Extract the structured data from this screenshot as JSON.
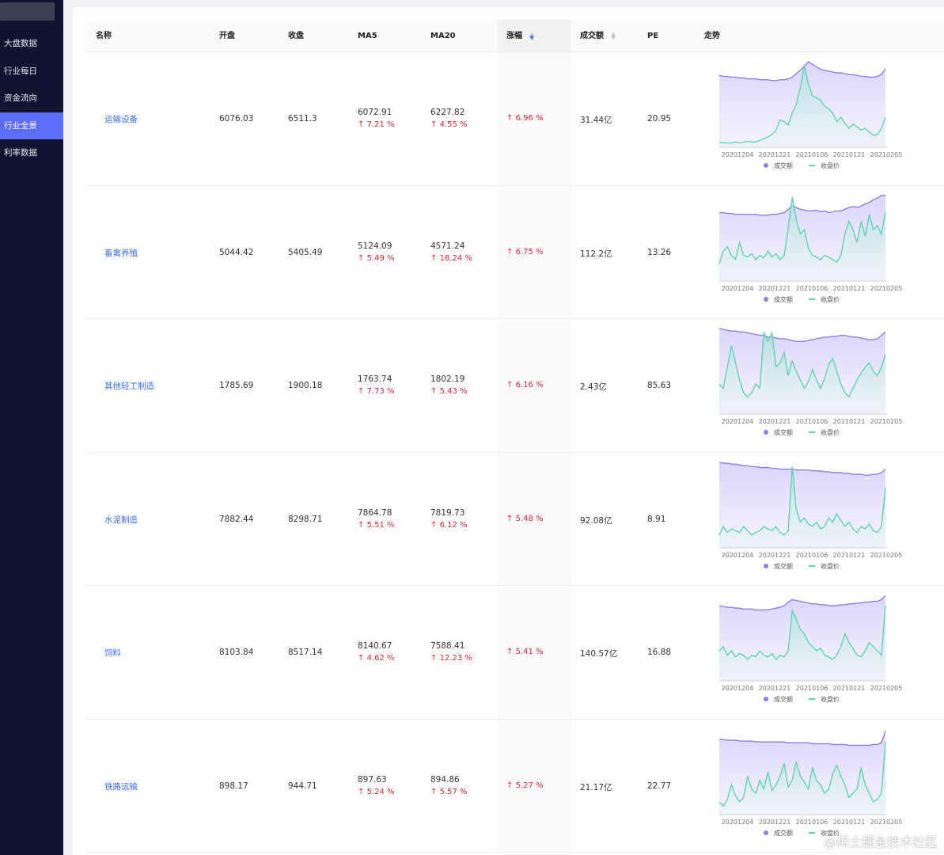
{
  "sidebar": {
    "items": [
      {
        "label": "大盘数据",
        "active": false
      },
      {
        "label": "行业每日",
        "active": false
      },
      {
        "label": "资金流向",
        "active": false
      },
      {
        "label": "行业全景",
        "active": true
      },
      {
        "label": "利率数据",
        "active": false
      }
    ]
  },
  "table": {
    "columns": {
      "name": "名称",
      "open": "开盘",
      "close": "收盘",
      "ma5": "MA5",
      "ma20": "MA20",
      "change": "涨幅",
      "volume": "成交额",
      "pe": "PE",
      "trend": "走势"
    },
    "up_arrow": "↑",
    "rows": [
      {
        "name": "运输设备",
        "open": "6076.03",
        "close": "6511.3",
        "ma5": "6072.91",
        "ma5_pct": "7.21 %",
        "ma20": "6227.82",
        "ma20_pct": "4.55 %",
        "change": "6.96 %",
        "volume": "31.44亿",
        "pe": "20.95"
      },
      {
        "name": "畜禽养殖",
        "open": "5044.42",
        "close": "5405.49",
        "ma5": "5124.09",
        "ma5_pct": "5.49 %",
        "ma20": "4571.24",
        "ma20_pct": "18.24 %",
        "change": "6.75 %",
        "volume": "112.2亿",
        "pe": "13.26"
      },
      {
        "name": "其他轻工制造",
        "open": "1785.69",
        "close": "1900.18",
        "ma5": "1763.74",
        "ma5_pct": "7.73 %",
        "ma20": "1802.19",
        "ma20_pct": "5.43 %",
        "change": "6.16 %",
        "volume": "2.43亿",
        "pe": "85.63"
      },
      {
        "name": "水泥制造",
        "open": "7882.44",
        "close": "8298.71",
        "ma5": "7864.78",
        "ma5_pct": "5.51 %",
        "ma20": "7819.73",
        "ma20_pct": "6.12 %",
        "change": "5.48 %",
        "volume": "92.08亿",
        "pe": "8.91"
      },
      {
        "name": "饲料",
        "open": "8103.84",
        "close": "8517.14",
        "ma5": "8140.67",
        "ma5_pct": "4.62 %",
        "ma20": "7588.41",
        "ma20_pct": "12.23 %",
        "change": "5.41 %",
        "volume": "140.57亿",
        "pe": "16.88"
      },
      {
        "name": "铁路运输",
        "open": "898.17",
        "close": "944.71",
        "ma5": "897.63",
        "ma5_pct": "5.24 %",
        "ma20": "894.86",
        "ma20_pct": "5.57 %",
        "change": "5.27 %",
        "volume": "21.17亿",
        "pe": "22.77"
      }
    ]
  },
  "chart_data": {
    "type": "area",
    "x_ticks": [
      "20201204",
      "20201221",
      "20210106",
      "20210121",
      "20210205"
    ],
    "legend": [
      "成交额",
      "收盘价"
    ],
    "colors": {
      "volume": "#8f7ee6",
      "close": "#5fd3ad"
    },
    "charts": [
      {
        "row": "运输设备",
        "series": [
          {
            "name": "成交额",
            "values": [
              0.84,
              0.83,
              0.83,
              0.82,
              0.82,
              0.81,
              0.81,
              0.8,
              0.8,
              0.8,
              0.79,
              0.79,
              0.79,
              0.78,
              0.78,
              0.79,
              0.79,
              0.8,
              0.82,
              0.86,
              0.9,
              0.95,
              1.0,
              0.97,
              0.94,
              0.91,
              0.9,
              0.89,
              0.88,
              0.87,
              0.87,
              0.86,
              0.85,
              0.85,
              0.84,
              0.83,
              0.83,
              0.82,
              0.82,
              0.83,
              0.85,
              0.92
            ]
          },
          {
            "name": "收盘价",
            "values": [
              0.06,
              0.05,
              0.05,
              0.05,
              0.06,
              0.05,
              0.06,
              0.07,
              0.06,
              0.06,
              0.08,
              0.1,
              0.12,
              0.15,
              0.2,
              0.32,
              0.3,
              0.26,
              0.4,
              0.5,
              0.7,
              0.95,
              0.74,
              0.6,
              0.58,
              0.55,
              0.48,
              0.45,
              0.4,
              0.3,
              0.35,
              0.28,
              0.22,
              0.27,
              0.24,
              0.2,
              0.22,
              0.18,
              0.14,
              0.15,
              0.22,
              0.35
            ]
          }
        ]
      },
      {
        "row": "畜禽养殖",
        "series": [
          {
            "name": "成交额",
            "values": [
              0.8,
              0.8,
              0.79,
              0.79,
              0.78,
              0.78,
              0.78,
              0.78,
              0.78,
              0.78,
              0.77,
              0.77,
              0.77,
              0.78,
              0.78,
              0.79,
              0.8,
              0.84,
              0.88,
              0.86,
              0.84,
              0.83,
              0.82,
              0.82,
              0.83,
              0.81,
              0.82,
              0.8,
              0.81,
              0.82,
              0.82,
              0.84,
              0.86,
              0.87,
              0.86,
              0.88,
              0.9,
              0.92,
              0.95,
              0.97,
              1.0,
              1.0
            ]
          },
          {
            "name": "收盘价",
            "values": [
              0.2,
              0.35,
              0.4,
              0.3,
              0.25,
              0.45,
              0.3,
              0.28,
              0.32,
              0.25,
              0.3,
              0.27,
              0.35,
              0.28,
              0.32,
              0.25,
              0.3,
              0.62,
              0.98,
              0.72,
              0.55,
              0.6,
              0.38,
              0.3,
              0.28,
              0.25,
              0.3,
              0.28,
              0.25,
              0.22,
              0.3,
              0.55,
              0.7,
              0.6,
              0.45,
              0.7,
              0.52,
              0.78,
              0.6,
              0.65,
              0.55,
              0.8
            ]
          }
        ]
      },
      {
        "row": "其他轻工制造",
        "series": [
          {
            "name": "成交额",
            "values": [
              1.0,
              0.99,
              0.98,
              0.97,
              0.97,
              0.96,
              0.96,
              0.95,
              0.94,
              0.93,
              0.92,
              0.92,
              0.9,
              0.9,
              0.89,
              0.88,
              0.88,
              0.87,
              0.86,
              0.85,
              0.85,
              0.85,
              0.86,
              0.87,
              0.88,
              0.89,
              0.9,
              0.9,
              0.91,
              0.91,
              0.92,
              0.92,
              0.91,
              0.9,
              0.9,
              0.89,
              0.88,
              0.87,
              0.87,
              0.88,
              0.92,
              0.96
            ]
          },
          {
            "name": "收盘价",
            "values": [
              0.35,
              0.3,
              0.55,
              0.8,
              0.6,
              0.4,
              0.25,
              0.2,
              0.25,
              0.35,
              0.3,
              0.95,
              0.85,
              0.95,
              0.55,
              0.6,
              0.72,
              0.45,
              0.62,
              0.5,
              0.4,
              0.3,
              0.38,
              0.52,
              0.4,
              0.3,
              0.42,
              0.58,
              0.65,
              0.5,
              0.35,
              0.25,
              0.2,
              0.3,
              0.4,
              0.48,
              0.55,
              0.6,
              0.5,
              0.45,
              0.55,
              0.7
            ]
          }
        ]
      },
      {
        "row": "水泥制造",
        "series": [
          {
            "name": "成交额",
            "values": [
              1.0,
              0.99,
              0.99,
              0.98,
              0.98,
              0.97,
              0.96,
              0.96,
              0.95,
              0.95,
              0.94,
              0.94,
              0.94,
              0.93,
              0.93,
              0.92,
              0.92,
              0.92,
              0.92,
              0.91,
              0.91,
              0.91,
              0.91,
              0.9,
              0.9,
              0.9,
              0.89,
              0.89,
              0.88,
              0.88,
              0.88,
              0.87,
              0.87,
              0.86,
              0.86,
              0.86,
              0.85,
              0.85,
              0.86,
              0.86,
              0.88,
              0.92
            ]
          },
          {
            "name": "收盘价",
            "values": [
              0.15,
              0.25,
              0.18,
              0.22,
              0.2,
              0.18,
              0.25,
              0.2,
              0.15,
              0.18,
              0.2,
              0.25,
              0.22,
              0.2,
              0.25,
              0.18,
              0.15,
              0.2,
              0.95,
              0.45,
              0.3,
              0.35,
              0.28,
              0.25,
              0.3,
              0.22,
              0.25,
              0.35,
              0.3,
              0.4,
              0.32,
              0.25,
              0.3,
              0.22,
              0.18,
              0.25,
              0.22,
              0.28,
              0.2,
              0.18,
              0.25,
              0.7
            ]
          }
        ]
      },
      {
        "row": "饲料",
        "series": [
          {
            "name": "成交额",
            "values": [
              0.88,
              0.87,
              0.86,
              0.86,
              0.85,
              0.85,
              0.84,
              0.84,
              0.84,
              0.83,
              0.83,
              0.83,
              0.83,
              0.84,
              0.85,
              0.86,
              0.88,
              0.92,
              0.95,
              0.94,
              0.93,
              0.92,
              0.91,
              0.9,
              0.9,
              0.89,
              0.89,
              0.88,
              0.88,
              0.88,
              0.89,
              0.89,
              0.9,
              0.9,
              0.91,
              0.91,
              0.92,
              0.92,
              0.93,
              0.93,
              0.95,
              1.0
            ]
          },
          {
            "name": "收盘价",
            "values": [
              0.35,
              0.4,
              0.3,
              0.35,
              0.28,
              0.32,
              0.3,
              0.25,
              0.3,
              0.28,
              0.35,
              0.3,
              0.28,
              0.32,
              0.25,
              0.3,
              0.28,
              0.35,
              0.82,
              0.72,
              0.6,
              0.55,
              0.45,
              0.4,
              0.35,
              0.38,
              0.3,
              0.28,
              0.25,
              0.3,
              0.4,
              0.55,
              0.45,
              0.38,
              0.3,
              0.28,
              0.35,
              0.45,
              0.4,
              0.35,
              0.3,
              0.88
            ]
          }
        ]
      },
      {
        "row": "铁路运输",
        "series": [
          {
            "name": "成交额",
            "values": [
              0.88,
              0.88,
              0.87,
              0.87,
              0.87,
              0.86,
              0.86,
              0.86,
              0.86,
              0.85,
              0.85,
              0.85,
              0.85,
              0.85,
              0.85,
              0.85,
              0.85,
              0.84,
              0.84,
              0.84,
              0.84,
              0.84,
              0.84,
              0.83,
              0.83,
              0.83,
              0.83,
              0.83,
              0.82,
              0.82,
              0.82,
              0.82,
              0.81,
              0.81,
              0.81,
              0.81,
              0.81,
              0.81,
              0.82,
              0.82,
              0.84,
              0.98
            ]
          },
          {
            "name": "收盘价",
            "values": [
              0.15,
              0.1,
              0.18,
              0.35,
              0.22,
              0.15,
              0.2,
              0.45,
              0.3,
              0.25,
              0.4,
              0.3,
              0.5,
              0.28,
              0.35,
              0.45,
              0.6,
              0.32,
              0.4,
              0.62,
              0.45,
              0.38,
              0.3,
              0.55,
              0.4,
              0.35,
              0.25,
              0.3,
              0.48,
              0.58,
              0.45,
              0.35,
              0.2,
              0.25,
              0.3,
              0.55,
              0.35,
              0.25,
              0.15,
              0.18,
              0.25,
              0.85
            ]
          }
        ]
      }
    ]
  },
  "watermark": "@稀土掘金技术社区"
}
